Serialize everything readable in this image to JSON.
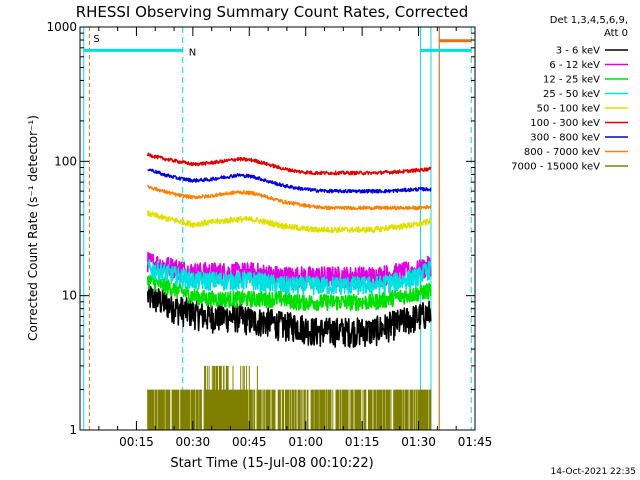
{
  "chart_data": {
    "type": "line",
    "title": "RHESSI Observing Summary Count Rates, Corrected",
    "xlabel": "Start Time (15-Jul-08 00:10:22)",
    "ylabel": "Corrected Count Rate (s⁻¹ detector⁻¹)",
    "yscale": "log",
    "ylim": [
      1,
      1000
    ],
    "xlim_minutes": [
      0,
      105
    ],
    "yticks": [
      {
        "value": 1,
        "label": "1"
      },
      {
        "value": 10,
        "label": "10"
      },
      {
        "value": 100,
        "label": "100"
      },
      {
        "value": 1000,
        "label": "1000"
      }
    ],
    "xticks": [
      {
        "value": 15,
        "label": "00:15"
      },
      {
        "value": 30,
        "label": "00:30"
      },
      {
        "value": 45,
        "label": "00:45"
      },
      {
        "value": 60,
        "label": "01:00"
      },
      {
        "value": 75,
        "label": "01:15"
      },
      {
        "value": 90,
        "label": "01:30"
      },
      {
        "value": 105,
        "label": "01:45"
      }
    ],
    "legend_header": [
      "Det 1,3,4,5,6,9,",
      "Att 0"
    ],
    "legend_placement": "right",
    "timestamp": "14-Oct-2021 22:35",
    "markers": [
      {
        "label": "S",
        "color": "#e07020"
      },
      {
        "label": "N",
        "color": "#00e0e0"
      }
    ],
    "series": [
      {
        "name": "3 - 6 keV",
        "color": "#000000",
        "x": [
          18,
          22,
          26,
          30,
          34,
          38,
          42,
          46,
          50,
          54,
          58,
          62,
          66,
          70,
          74,
          78,
          82,
          86,
          90,
          93.3
        ],
        "values": [
          10,
          9,
          8,
          7.5,
          7,
          7,
          7,
          6.5,
          6.5,
          6,
          6,
          5.5,
          5.5,
          5.5,
          5.5,
          5.5,
          6,
          6.5,
          7,
          7.5
        ]
      },
      {
        "name": "6 - 12 keV",
        "color": "#e000e0",
        "x": [
          18,
          22,
          26,
          30,
          34,
          38,
          42,
          46,
          50,
          54,
          58,
          62,
          66,
          70,
          74,
          78,
          82,
          86,
          90,
          93.3
        ],
        "values": [
          18,
          17,
          16,
          15,
          15,
          15,
          15,
          15,
          14.5,
          14,
          14,
          14,
          14,
          14,
          14,
          14,
          14.5,
          15,
          15.5,
          17
        ]
      },
      {
        "name": "12 - 25 keV",
        "color": "#00e000",
        "x": [
          18,
          22,
          26,
          30,
          34,
          38,
          42,
          46,
          50,
          54,
          58,
          62,
          66,
          70,
          74,
          78,
          82,
          86,
          90,
          93.3
        ],
        "values": [
          13,
          12,
          11,
          10,
          9.5,
          9.5,
          9.5,
          9.5,
          9.5,
          9.5,
          9,
          9,
          9,
          9,
          9,
          9,
          9.5,
          10,
          10.5,
          11
        ]
      },
      {
        "name": "25 - 50 keV",
        "color": "#00e0e0",
        "x": [
          18,
          22,
          26,
          30,
          34,
          38,
          42,
          46,
          50,
          54,
          58,
          62,
          66,
          70,
          74,
          78,
          82,
          86,
          90,
          93.3
        ],
        "values": [
          16,
          15,
          14,
          13,
          13,
          13,
          13,
          13,
          12.5,
          12,
          12,
          12,
          12,
          12,
          12,
          12,
          12.5,
          13,
          14,
          16
        ]
      },
      {
        "name": "50 - 100 keV",
        "color": "#e0e000",
        "x": [
          18,
          22,
          26,
          30,
          34,
          38,
          42,
          46,
          50,
          54,
          58,
          62,
          66,
          70,
          74,
          78,
          82,
          86,
          90,
          93.3
        ],
        "values": [
          41,
          38,
          36,
          34,
          35,
          36,
          37,
          37,
          35,
          33,
          32,
          31,
          31,
          31,
          31,
          31,
          32,
          33,
          34,
          36
        ]
      },
      {
        "name": "100 - 300 keV",
        "color": "#e00000",
        "x": [
          18,
          22,
          26,
          30,
          34,
          38,
          42,
          46,
          50,
          54,
          58,
          62,
          66,
          70,
          74,
          78,
          82,
          86,
          90,
          93.3
        ],
        "values": [
          112,
          105,
          100,
          95,
          97,
          100,
          104,
          102,
          95,
          88,
          84,
          82,
          82,
          82,
          82,
          82,
          83,
          84,
          86,
          88
        ]
      },
      {
        "name": "300 - 800 keV",
        "color": "#0000e0",
        "x": [
          18,
          22,
          26,
          30,
          34,
          38,
          42,
          46,
          50,
          54,
          58,
          62,
          66,
          70,
          74,
          78,
          82,
          86,
          90,
          93.3
        ],
        "values": [
          88,
          80,
          75,
          72,
          73,
          76,
          79,
          77,
          71,
          66,
          63,
          61,
          60,
          60,
          60,
          60,
          60,
          61,
          62,
          62
        ]
      },
      {
        "name": "800 - 7000 keV",
        "color": "#ff8000",
        "x": [
          18,
          22,
          26,
          30,
          34,
          38,
          42,
          46,
          50,
          54,
          58,
          62,
          66,
          70,
          74,
          78,
          82,
          86,
          90,
          93.3
        ],
        "values": [
          65,
          60,
          56,
          54,
          55,
          57,
          59,
          58,
          54,
          50,
          48,
          46,
          45,
          45,
          45,
          45,
          45,
          45,
          45,
          46
        ]
      },
      {
        "name": "7000 - 15000 keV",
        "color": "#808000",
        "x": [
          18,
          22,
          26,
          30,
          34,
          38,
          42,
          46,
          50,
          54,
          58,
          62,
          66,
          70,
          74,
          78,
          82,
          86,
          90,
          93.3
        ],
        "values": [
          1.5,
          1.5,
          1.5,
          1,
          1.5,
          2,
          2.5,
          2,
          1.5,
          1.5,
          1.5,
          1.5,
          1.5,
          1.5,
          1.5,
          1.5,
          1.5,
          1.5,
          1.5,
          1.5
        ]
      }
    ]
  }
}
